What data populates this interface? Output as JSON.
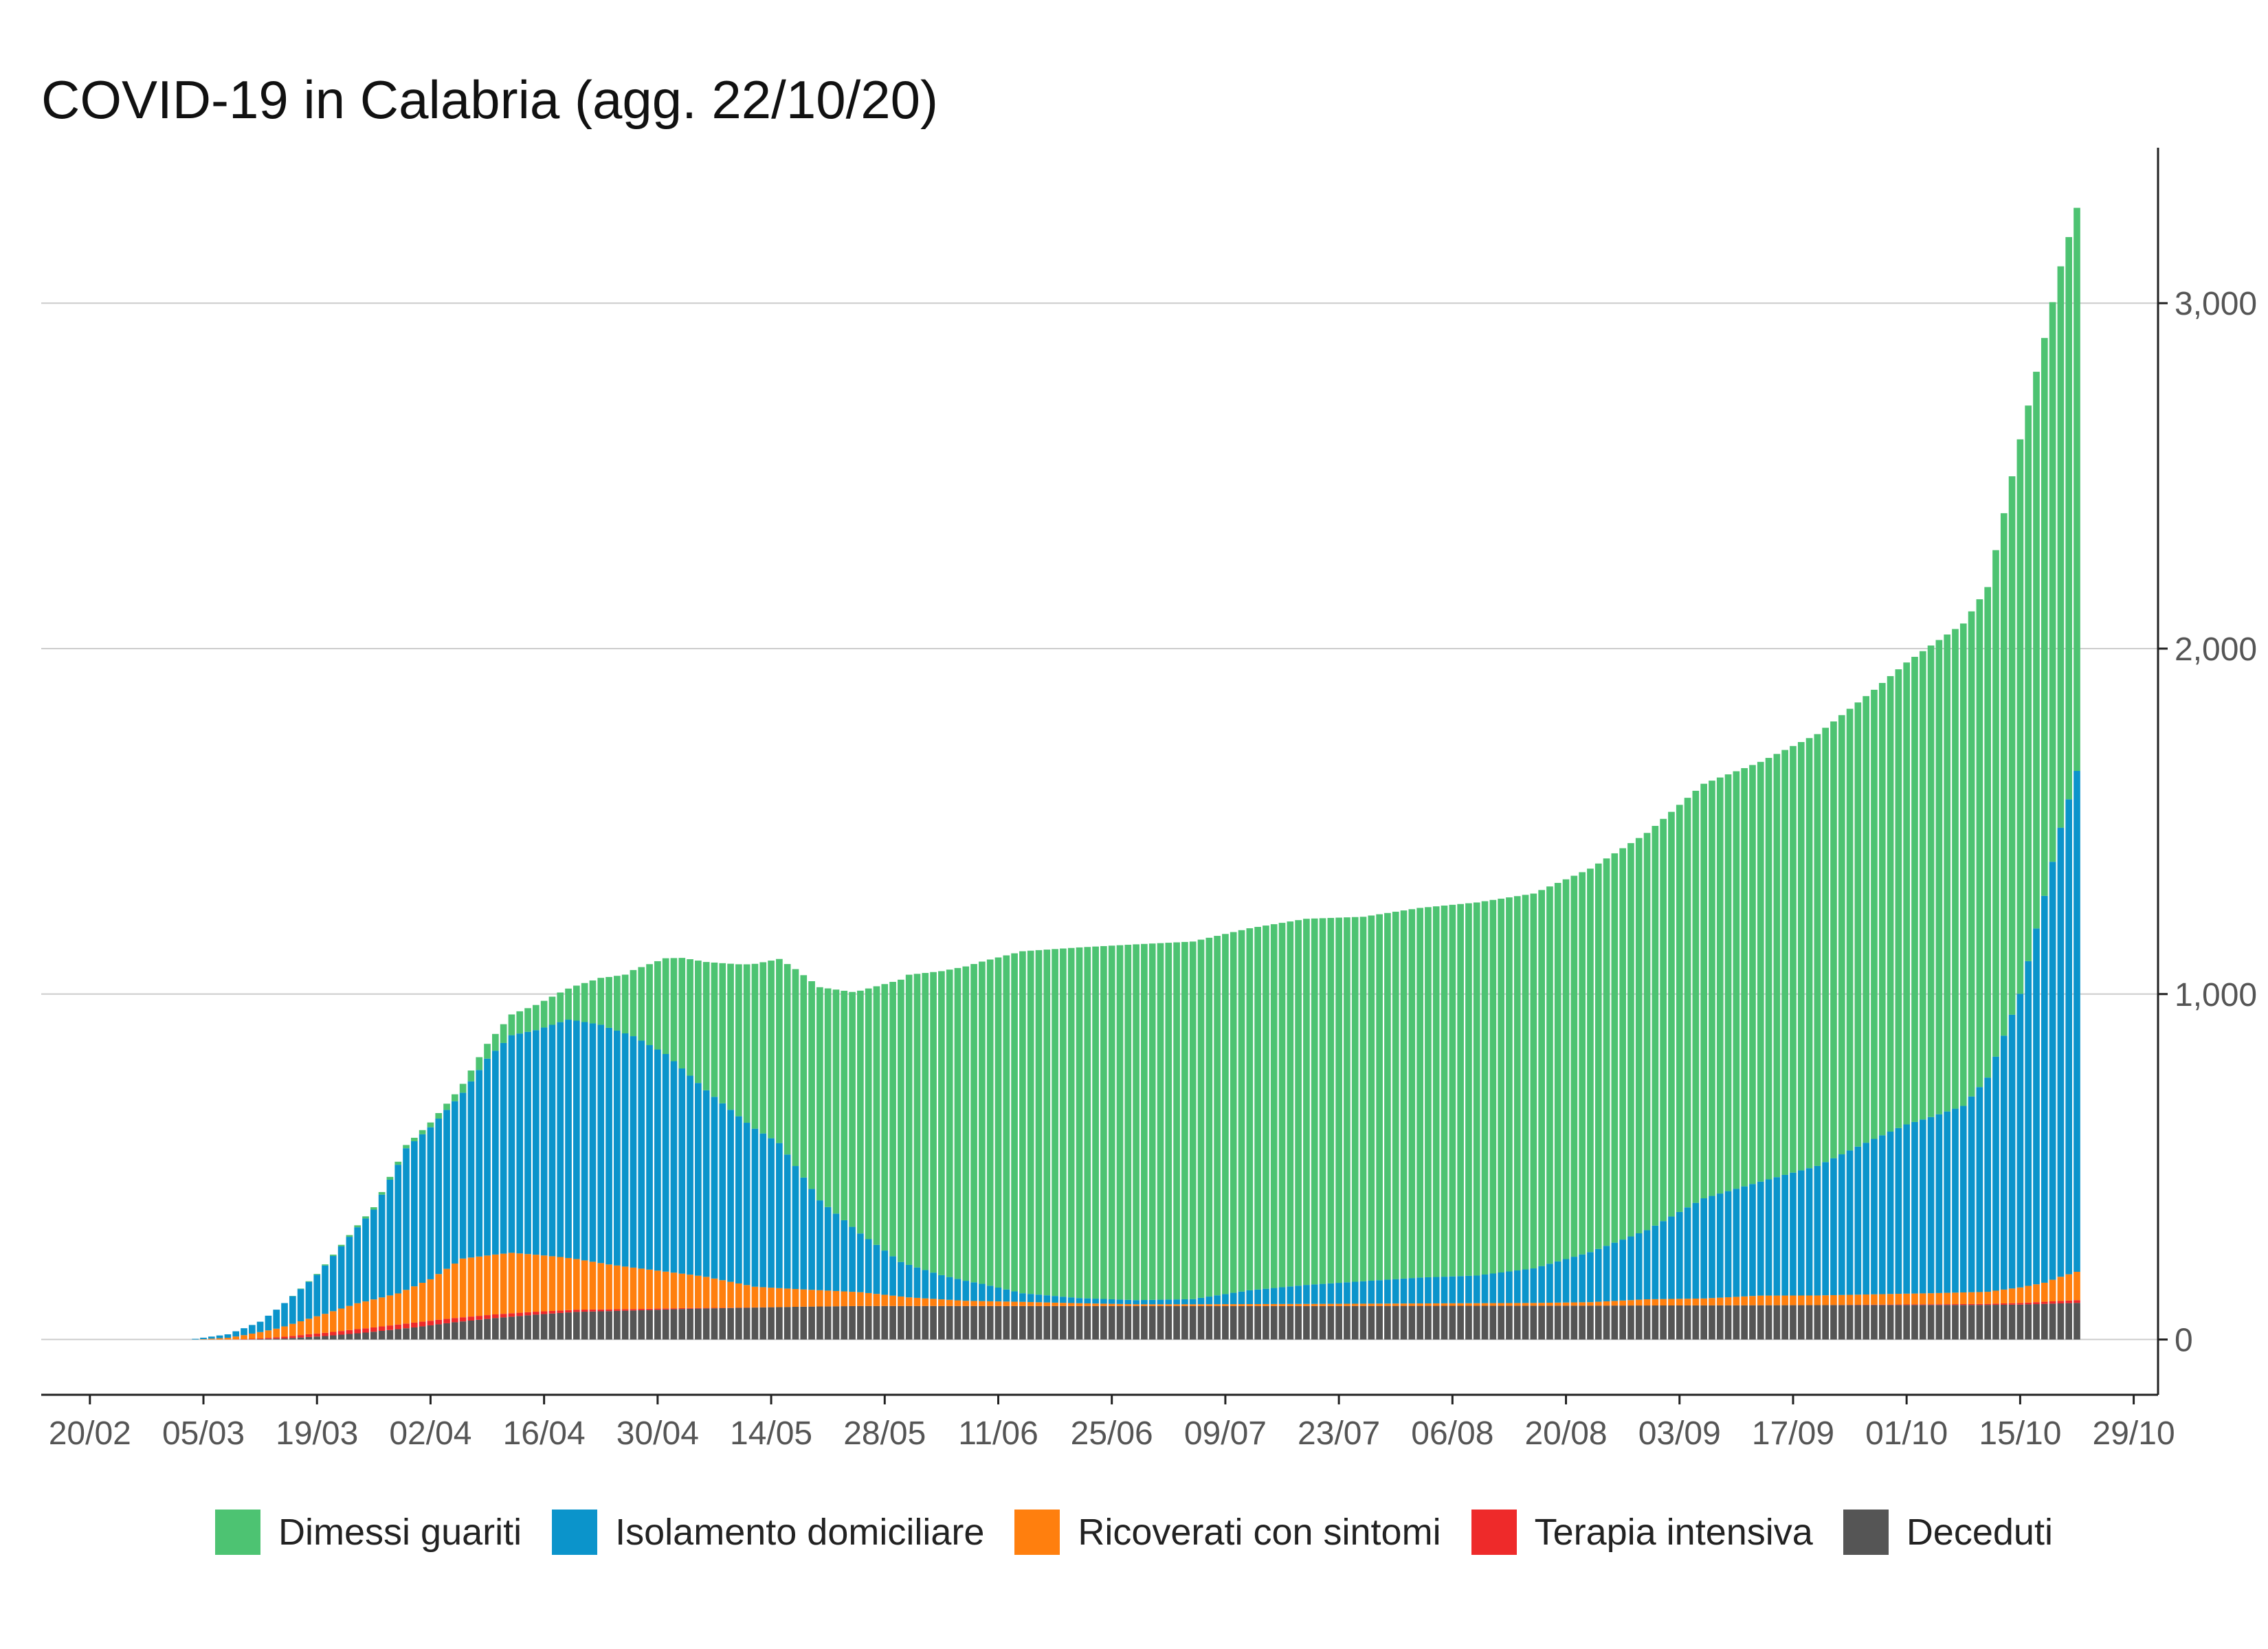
{
  "chart_data": {
    "type": "bar",
    "stacked": true,
    "title": "COVID-19 in Calabria (agg. 22/10/20)",
    "xlabel": "",
    "ylabel": "",
    "y_axis_position": "right",
    "ylim": [
      -160,
      3450
    ],
    "yticks": [
      0,
      1000,
      2000,
      3000
    ],
    "ytick_labels": [
      "0",
      "1,000",
      "2,000",
      "3,000"
    ],
    "x_range": [
      "2020-02-14",
      "2020-11-01"
    ],
    "xticks": [
      "2020-02-20",
      "2020-03-05",
      "2020-03-19",
      "2020-04-02",
      "2020-04-16",
      "2020-04-30",
      "2020-05-14",
      "2020-05-28",
      "2020-06-11",
      "2020-06-25",
      "2020-07-09",
      "2020-07-23",
      "2020-08-06",
      "2020-08-20",
      "2020-09-03",
      "2020-09-17",
      "2020-10-01",
      "2020-10-15",
      "2020-10-29"
    ],
    "xtick_labels": [
      "20/02",
      "05/03",
      "19/03",
      "02/04",
      "16/04",
      "30/04",
      "14/05",
      "28/05",
      "11/06",
      "25/06",
      "09/07",
      "23/07",
      "06/08",
      "20/08",
      "03/09",
      "17/09",
      "01/10",
      "15/10",
      "29/10"
    ],
    "grid": "horizontal",
    "legend_position": "bottom",
    "stack_order_bottom_to_top": [
      "Deceduti",
      "Terapia intensiva",
      "Ricoverati con sintomi",
      "Isolamento domiciliare",
      "Dimessi guariti"
    ],
    "x_start": "2020-02-24",
    "x_end": "2020-10-22",
    "x_frequency": "daily",
    "series": [
      {
        "name": "Dimessi guariti",
        "color": "#4dc372",
        "knots": [
          [
            "2020-02-24",
            0
          ],
          [
            "2020-03-15",
            0
          ],
          [
            "2020-03-31",
            10
          ],
          [
            "2020-04-05",
            20
          ],
          [
            "2020-04-12",
            60
          ],
          [
            "2020-04-19",
            90
          ],
          [
            "2020-04-26",
            170
          ],
          [
            "2020-05-03",
            320
          ],
          [
            "2020-05-10",
            440
          ],
          [
            "2020-05-17",
            570
          ],
          [
            "2020-05-24",
            680
          ],
          [
            "2020-05-31",
            840
          ],
          [
            "2020-06-07",
            910
          ],
          [
            "2020-06-14",
            990
          ],
          [
            "2020-06-21",
            1015
          ],
          [
            "2020-06-28",
            1030
          ],
          [
            "2020-07-05",
            1035
          ],
          [
            "2020-07-12",
            1048
          ],
          [
            "2020-07-19",
            1060
          ],
          [
            "2020-07-26",
            1055
          ],
          [
            "2020-08-02",
            1070
          ],
          [
            "2020-08-09",
            1080
          ],
          [
            "2020-08-16",
            1085
          ],
          [
            "2020-08-23",
            1110
          ],
          [
            "2020-08-30",
            1150
          ],
          [
            "2020-09-06",
            1200
          ],
          [
            "2020-09-13",
            1215
          ],
          [
            "2020-09-20",
            1250
          ],
          [
            "2020-09-27",
            1300
          ],
          [
            "2020-10-04",
            1365
          ],
          [
            "2020-10-11",
            1420
          ],
          [
            "2020-10-15",
            1605
          ],
          [
            "2020-10-18",
            1615
          ],
          [
            "2020-10-20",
            1625
          ],
          [
            "2020-10-22",
            1630
          ]
        ]
      },
      {
        "name": "Isolamento domiciliare",
        "color": "#0b94cb",
        "knots": [
          [
            "2020-02-24",
            0
          ],
          [
            "2020-03-03",
            0
          ],
          [
            "2020-03-08",
            10
          ],
          [
            "2020-03-12",
            30
          ],
          [
            "2020-03-16",
            80
          ],
          [
            "2020-03-19",
            120
          ],
          [
            "2020-03-22",
            180
          ],
          [
            "2020-03-26",
            260
          ],
          [
            "2020-03-30",
            410
          ],
          [
            "2020-04-02",
            440
          ],
          [
            "2020-04-06",
            480
          ],
          [
            "2020-04-09",
            570
          ],
          [
            "2020-04-12",
            630
          ],
          [
            "2020-04-15",
            650
          ],
          [
            "2020-04-19",
            690
          ],
          [
            "2020-04-23",
            690
          ],
          [
            "2020-04-27",
            670
          ],
          [
            "2020-05-01",
            630
          ],
          [
            "2020-05-06",
            540
          ],
          [
            "2020-05-11",
            470
          ],
          [
            "2020-05-15",
            420
          ],
          [
            "2020-05-20",
            260
          ],
          [
            "2020-05-25",
            170
          ],
          [
            "2020-05-30",
            100
          ],
          [
            "2020-06-04",
            70
          ],
          [
            "2020-06-09",
            50
          ],
          [
            "2020-06-14",
            25
          ],
          [
            "2020-06-21",
            15
          ],
          [
            "2020-06-28",
            12
          ],
          [
            "2020-07-05",
            15
          ],
          [
            "2020-07-12",
            40
          ],
          [
            "2020-07-19",
            55
          ],
          [
            "2020-07-26",
            65
          ],
          [
            "2020-08-02",
            75
          ],
          [
            "2020-08-09",
            80
          ],
          [
            "2020-08-16",
            100
          ],
          [
            "2020-08-23",
            145
          ],
          [
            "2020-08-30",
            200
          ],
          [
            "2020-09-06",
            290
          ],
          [
            "2020-09-13",
            330
          ],
          [
            "2020-09-20",
            375
          ],
          [
            "2020-09-27",
            450
          ],
          [
            "2020-10-01",
            490
          ],
          [
            "2020-10-04",
            510
          ],
          [
            "2020-10-08",
            540
          ],
          [
            "2020-10-11",
            620
          ],
          [
            "2020-10-15",
            850
          ],
          [
            "2020-10-18",
            1120
          ],
          [
            "2020-10-20",
            1300
          ],
          [
            "2020-10-22",
            1450
          ]
        ]
      },
      {
        "name": "Ricoverati con sintomi",
        "color": "#ff7f0e",
        "knots": [
          [
            "2020-02-24",
            0
          ],
          [
            "2020-03-04",
            0
          ],
          [
            "2020-03-08",
            5
          ],
          [
            "2020-03-14",
            25
          ],
          [
            "2020-03-19",
            50
          ],
          [
            "2020-03-24",
            75
          ],
          [
            "2020-03-29",
            90
          ],
          [
            "2020-04-02",
            120
          ],
          [
            "2020-04-06",
            170
          ],
          [
            "2020-04-12",
            175
          ],
          [
            "2020-04-18",
            155
          ],
          [
            "2020-04-24",
            130
          ],
          [
            "2020-04-30",
            110
          ],
          [
            "2020-05-06",
            90
          ],
          [
            "2020-05-12",
            60
          ],
          [
            "2020-05-18",
            50
          ],
          [
            "2020-05-25",
            40
          ],
          [
            "2020-05-31",
            25
          ],
          [
            "2020-06-07",
            15
          ],
          [
            "2020-06-14",
            12
          ],
          [
            "2020-06-21",
            8
          ],
          [
            "2020-06-28",
            5
          ],
          [
            "2020-07-05",
            5
          ],
          [
            "2020-07-19",
            6
          ],
          [
            "2020-08-02",
            7
          ],
          [
            "2020-08-16",
            8
          ],
          [
            "2020-08-23",
            10
          ],
          [
            "2020-08-30",
            18
          ],
          [
            "2020-09-06",
            20
          ],
          [
            "2020-09-13",
            28
          ],
          [
            "2020-09-20",
            28
          ],
          [
            "2020-09-27",
            30
          ],
          [
            "2020-10-04",
            32
          ],
          [
            "2020-10-11",
            35
          ],
          [
            "2020-10-15",
            45
          ],
          [
            "2020-10-18",
            55
          ],
          [
            "2020-10-20",
            70
          ],
          [
            "2020-10-22",
            82
          ]
        ]
      },
      {
        "name": "Terapia intensiva",
        "color": "#ee2a2a",
        "knots": [
          [
            "2020-02-24",
            0
          ],
          [
            "2020-03-08",
            0
          ],
          [
            "2020-03-12",
            2
          ],
          [
            "2020-03-18",
            8
          ],
          [
            "2020-03-24",
            12
          ],
          [
            "2020-03-31",
            14
          ],
          [
            "2020-04-06",
            12
          ],
          [
            "2020-04-12",
            10
          ],
          [
            "2020-04-18",
            7
          ],
          [
            "2020-04-24",
            5
          ],
          [
            "2020-05-01",
            3
          ],
          [
            "2020-05-08",
            1
          ],
          [
            "2020-05-15",
            0
          ],
          [
            "2020-09-20",
            0
          ],
          [
            "2020-09-27",
            1
          ],
          [
            "2020-10-04",
            2
          ],
          [
            "2020-10-11",
            3
          ],
          [
            "2020-10-22",
            8
          ]
        ]
      },
      {
        "name": "Deceduti",
        "color": "#555555",
        "knots": [
          [
            "2020-02-24",
            0
          ],
          [
            "2020-03-10",
            0
          ],
          [
            "2020-03-15",
            3
          ],
          [
            "2020-03-20",
            10
          ],
          [
            "2020-03-25",
            20
          ],
          [
            "2020-03-31",
            35
          ],
          [
            "2020-04-05",
            50
          ],
          [
            "2020-04-10",
            62
          ],
          [
            "2020-04-15",
            72
          ],
          [
            "2020-04-20",
            80
          ],
          [
            "2020-04-27",
            84
          ],
          [
            "2020-05-04",
            89
          ],
          [
            "2020-05-11",
            92
          ],
          [
            "2020-05-18",
            95
          ],
          [
            "2020-05-25",
            97
          ],
          [
            "2020-06-08",
            97
          ],
          [
            "2020-06-22",
            97
          ],
          [
            "2020-07-20",
            97
          ],
          [
            "2020-08-20",
            98
          ],
          [
            "2020-09-10",
            99
          ],
          [
            "2020-09-30",
            100
          ],
          [
            "2020-10-10",
            100
          ],
          [
            "2020-10-15",
            101
          ],
          [
            "2020-10-22",
            106
          ]
        ]
      }
    ]
  }
}
